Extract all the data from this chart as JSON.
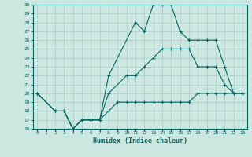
{
  "xlabel": "Humidex (Indice chaleur)",
  "bg_color": "#cce8e0",
  "grid_color": "#aacccc",
  "line_color": "#006666",
  "xlim": [
    -0.5,
    23.5
  ],
  "ylim": [
    16,
    30
  ],
  "xticks": [
    0,
    1,
    2,
    3,
    4,
    5,
    6,
    7,
    8,
    9,
    10,
    11,
    12,
    13,
    14,
    15,
    16,
    17,
    18,
    19,
    20,
    21,
    22,
    23
  ],
  "yticks": [
    16,
    17,
    18,
    19,
    20,
    21,
    22,
    23,
    24,
    25,
    26,
    27,
    28,
    29,
    30
  ],
  "lines": [
    {
      "x": [
        0,
        2,
        3,
        4,
        5,
        6,
        7,
        8,
        9,
        10,
        11,
        12,
        13,
        14,
        15,
        16,
        17,
        18,
        19,
        20,
        21,
        22,
        23
      ],
      "y": [
        20,
        18,
        18,
        16,
        17,
        17,
        17,
        18,
        19,
        19,
        19,
        19,
        19,
        19,
        19,
        19,
        19,
        20,
        20,
        20,
        20,
        20,
        20
      ]
    },
    {
      "x": [
        0,
        2,
        3,
        4,
        5,
        6,
        7,
        8,
        10,
        11,
        12,
        13,
        14,
        15,
        16,
        17,
        18,
        19,
        20,
        21,
        22,
        23
      ],
      "y": [
        20,
        18,
        18,
        16,
        17,
        17,
        17,
        20,
        22,
        22,
        23,
        24,
        25,
        25,
        25,
        25,
        23,
        23,
        23,
        21,
        20,
        20
      ]
    },
    {
      "x": [
        0,
        2,
        3,
        4,
        5,
        6,
        7,
        8,
        11,
        12,
        13,
        14,
        15,
        16,
        17,
        18,
        19,
        20,
        21,
        22,
        23
      ],
      "y": [
        20,
        18,
        18,
        16,
        17,
        17,
        17,
        22,
        28,
        27,
        30,
        30,
        30,
        27,
        26,
        26,
        26,
        26,
        23,
        20,
        20
      ]
    }
  ]
}
